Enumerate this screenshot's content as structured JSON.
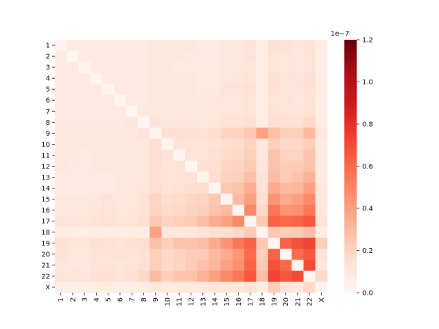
{
  "chart_data": {
    "type": "heatmap",
    "title": "",
    "xlabel": "",
    "ylabel": "",
    "labels": [
      "1",
      "2",
      "3",
      "4",
      "5",
      "6",
      "7",
      "8",
      "9",
      "10",
      "11",
      "12",
      "13",
      "14",
      "15",
      "16",
      "17",
      "18",
      "19",
      "20",
      "21",
      "22",
      "X"
    ],
    "colormap": "Reds",
    "colorbar": {
      "range": [
        0.0,
        1.2
      ],
      "ticks": [
        "0.0",
        "0.2",
        "0.4",
        "0.6",
        "0.8",
        "1.0",
        "1.2"
      ],
      "offset_text": "1e−7"
    },
    "matrix": [
      [
        0.0,
        0.08,
        0.08,
        0.08,
        0.08,
        0.08,
        0.08,
        0.08,
        0.1,
        0.09,
        0.09,
        0.09,
        0.08,
        0.08,
        0.09,
        0.1,
        0.12,
        0.06,
        0.14,
        0.12,
        0.11,
        0.13,
        0.05
      ],
      [
        0.08,
        0.0,
        0.08,
        0.08,
        0.08,
        0.08,
        0.08,
        0.08,
        0.09,
        0.09,
        0.09,
        0.08,
        0.08,
        0.08,
        0.09,
        0.1,
        0.12,
        0.06,
        0.13,
        0.11,
        0.1,
        0.12,
        0.05
      ],
      [
        0.08,
        0.08,
        0.0,
        0.08,
        0.08,
        0.08,
        0.08,
        0.08,
        0.09,
        0.09,
        0.08,
        0.08,
        0.08,
        0.08,
        0.09,
        0.1,
        0.11,
        0.06,
        0.13,
        0.11,
        0.09,
        0.12,
        0.05
      ],
      [
        0.08,
        0.08,
        0.08,
        0.0,
        0.08,
        0.08,
        0.08,
        0.08,
        0.1,
        0.09,
        0.09,
        0.09,
        0.08,
        0.08,
        0.1,
        0.11,
        0.13,
        0.06,
        0.15,
        0.12,
        0.12,
        0.15,
        0.06
      ],
      [
        0.08,
        0.08,
        0.08,
        0.08,
        0.0,
        0.08,
        0.08,
        0.08,
        0.1,
        0.09,
        0.09,
        0.09,
        0.08,
        0.08,
        0.12,
        0.12,
        0.14,
        0.06,
        0.14,
        0.12,
        0.12,
        0.14,
        0.06
      ],
      [
        0.08,
        0.08,
        0.08,
        0.08,
        0.08,
        0.0,
        0.08,
        0.08,
        0.1,
        0.09,
        0.09,
        0.09,
        0.09,
        0.09,
        0.11,
        0.11,
        0.13,
        0.06,
        0.13,
        0.12,
        0.11,
        0.13,
        0.05
      ],
      [
        0.08,
        0.08,
        0.08,
        0.08,
        0.08,
        0.08,
        0.0,
        0.09,
        0.1,
        0.09,
        0.09,
        0.09,
        0.09,
        0.1,
        0.11,
        0.11,
        0.13,
        0.06,
        0.14,
        0.12,
        0.12,
        0.14,
        0.05
      ],
      [
        0.08,
        0.08,
        0.08,
        0.08,
        0.08,
        0.08,
        0.09,
        0.0,
        0.12,
        0.1,
        0.1,
        0.1,
        0.1,
        0.11,
        0.13,
        0.13,
        0.15,
        0.06,
        0.16,
        0.14,
        0.14,
        0.18,
        0.06
      ],
      [
        0.1,
        0.09,
        0.09,
        0.1,
        0.1,
        0.1,
        0.1,
        0.12,
        0.0,
        0.14,
        0.15,
        0.15,
        0.14,
        0.15,
        0.2,
        0.2,
        0.25,
        0.4,
        0.28,
        0.22,
        0.22,
        0.3,
        0.09
      ],
      [
        0.09,
        0.09,
        0.09,
        0.09,
        0.09,
        0.09,
        0.09,
        0.1,
        0.14,
        0.0,
        0.12,
        0.13,
        0.12,
        0.13,
        0.16,
        0.17,
        0.2,
        0.1,
        0.22,
        0.18,
        0.18,
        0.22,
        0.07
      ],
      [
        0.09,
        0.09,
        0.08,
        0.09,
        0.09,
        0.09,
        0.09,
        0.1,
        0.15,
        0.12,
        0.0,
        0.13,
        0.13,
        0.14,
        0.17,
        0.18,
        0.22,
        0.1,
        0.27,
        0.2,
        0.2,
        0.26,
        0.08
      ],
      [
        0.09,
        0.08,
        0.08,
        0.09,
        0.09,
        0.09,
        0.09,
        0.1,
        0.15,
        0.13,
        0.13,
        0.0,
        0.14,
        0.15,
        0.19,
        0.2,
        0.24,
        0.11,
        0.27,
        0.23,
        0.24,
        0.27,
        0.08
      ],
      [
        0.08,
        0.08,
        0.08,
        0.08,
        0.08,
        0.09,
        0.09,
        0.1,
        0.14,
        0.12,
        0.13,
        0.14,
        0.0,
        0.16,
        0.2,
        0.22,
        0.28,
        0.12,
        0.29,
        0.24,
        0.27,
        0.33,
        0.08
      ],
      [
        0.08,
        0.08,
        0.08,
        0.08,
        0.08,
        0.09,
        0.1,
        0.11,
        0.15,
        0.13,
        0.14,
        0.15,
        0.16,
        0.0,
        0.25,
        0.27,
        0.35,
        0.14,
        0.36,
        0.3,
        0.32,
        0.4,
        0.09
      ],
      [
        0.09,
        0.09,
        0.09,
        0.1,
        0.12,
        0.11,
        0.11,
        0.13,
        0.2,
        0.16,
        0.17,
        0.19,
        0.2,
        0.25,
        0.0,
        0.3,
        0.4,
        0.15,
        0.44,
        0.36,
        0.4,
        0.48,
        0.1
      ],
      [
        0.1,
        0.1,
        0.1,
        0.11,
        0.12,
        0.11,
        0.11,
        0.13,
        0.2,
        0.17,
        0.18,
        0.2,
        0.22,
        0.27,
        0.3,
        0.0,
        0.48,
        0.18,
        0.55,
        0.44,
        0.46,
        0.55,
        0.11
      ],
      [
        0.12,
        0.12,
        0.11,
        0.13,
        0.14,
        0.13,
        0.13,
        0.15,
        0.25,
        0.2,
        0.22,
        0.24,
        0.28,
        0.35,
        0.4,
        0.48,
        0.0,
        0.24,
        0.62,
        0.6,
        0.62,
        0.66,
        0.12
      ],
      [
        0.06,
        0.06,
        0.06,
        0.06,
        0.06,
        0.06,
        0.06,
        0.06,
        0.4,
        0.1,
        0.1,
        0.11,
        0.12,
        0.14,
        0.15,
        0.18,
        0.24,
        0.0,
        0.25,
        0.22,
        0.24,
        0.28,
        0.06
      ],
      [
        0.14,
        0.13,
        0.13,
        0.15,
        0.14,
        0.13,
        0.14,
        0.16,
        0.28,
        0.22,
        0.27,
        0.27,
        0.29,
        0.36,
        0.44,
        0.55,
        0.62,
        0.25,
        0.0,
        0.62,
        0.68,
        0.72,
        0.22
      ],
      [
        0.12,
        0.11,
        0.11,
        0.12,
        0.12,
        0.12,
        0.12,
        0.14,
        0.22,
        0.18,
        0.2,
        0.23,
        0.24,
        0.3,
        0.36,
        0.44,
        0.6,
        0.22,
        0.62,
        0.0,
        0.6,
        0.66,
        0.12
      ],
      [
        0.11,
        0.1,
        0.09,
        0.12,
        0.12,
        0.11,
        0.12,
        0.14,
        0.22,
        0.18,
        0.2,
        0.24,
        0.27,
        0.32,
        0.4,
        0.46,
        0.62,
        0.24,
        0.68,
        0.6,
        0.0,
        0.7,
        0.1
      ],
      [
        0.13,
        0.12,
        0.12,
        0.15,
        0.14,
        0.13,
        0.14,
        0.18,
        0.3,
        0.22,
        0.26,
        0.27,
        0.33,
        0.4,
        0.48,
        0.55,
        0.66,
        0.28,
        0.72,
        0.66,
        0.7,
        0.0,
        0.18
      ],
      [
        0.05,
        0.05,
        0.05,
        0.06,
        0.06,
        0.05,
        0.05,
        0.06,
        0.09,
        0.07,
        0.08,
        0.08,
        0.08,
        0.09,
        0.1,
        0.11,
        0.12,
        0.06,
        0.22,
        0.12,
        0.1,
        0.18,
        0.0
      ]
    ]
  }
}
